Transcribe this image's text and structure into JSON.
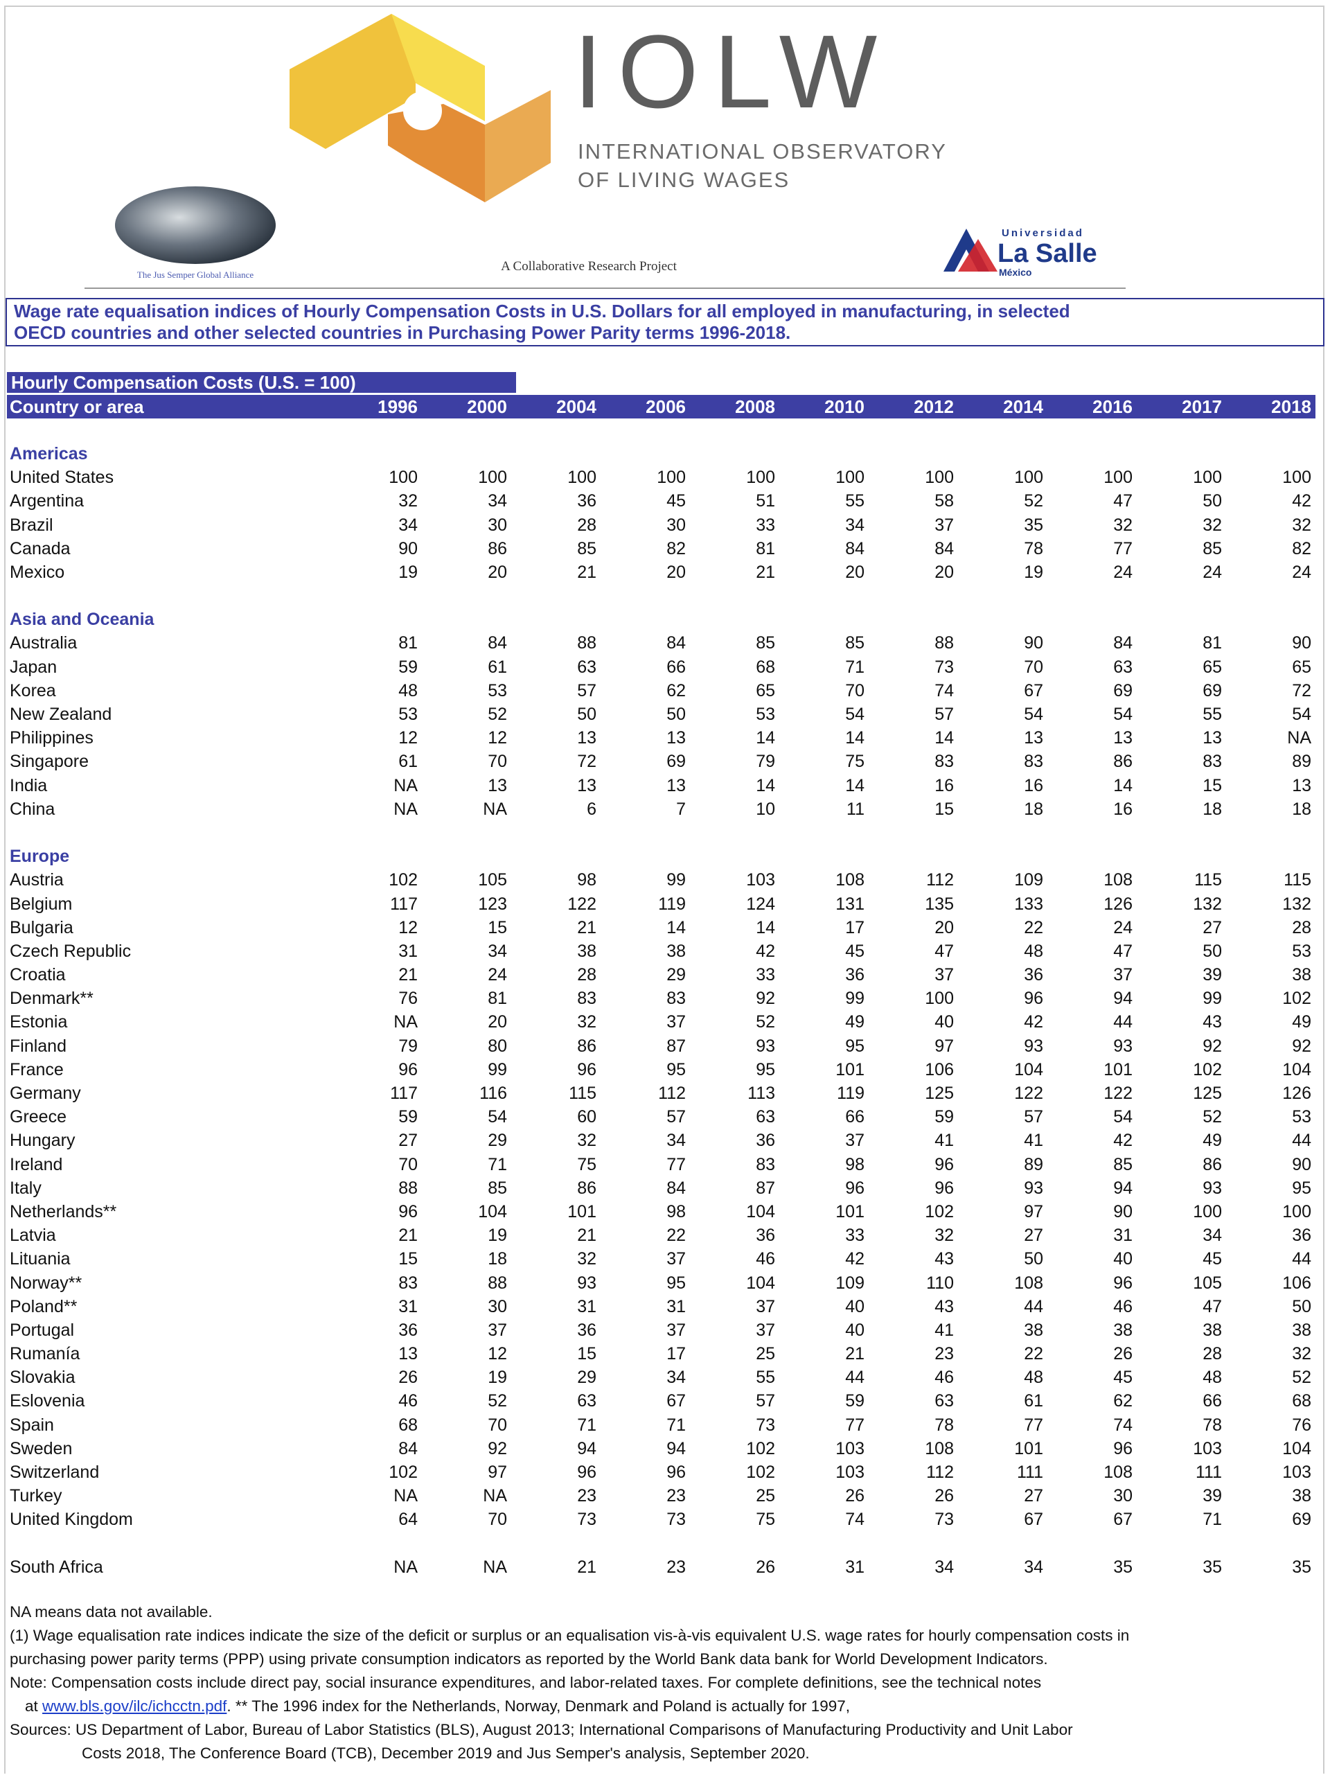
{
  "header": {
    "logo": "IOLW",
    "observatory_line1": "INTERNATIONAL OBSERVATORY",
    "observatory_line2": "OF LIVING WAGES",
    "alliance": "The Jus Semper Global Alliance",
    "project": "A Collaborative Research Project",
    "university_small": "Universidad",
    "university_name": "La Salle",
    "university_place": "México"
  },
  "title": {
    "lines": [
      "Wage rate equalisation indices of Hourly Compensation Costs in U.S. Dollars for all employed in manufacturing, in selected",
      "OECD countries and other selected countries in Purchasing Power Parity terms 1996-2018."
    ]
  },
  "table": {
    "caption": "Hourly Compensation Costs (U.S. = 100)",
    "header": [
      "Country or area",
      "1996",
      "2000",
      "2004",
      "2006",
      "2008",
      "2010",
      "2012",
      "2014",
      "2016",
      "2017",
      "2018"
    ],
    "groups": [
      {
        "name": "Americas",
        "rows": [
          [
            "United States",
            100,
            100,
            100,
            100,
            100,
            100,
            100,
            100,
            100,
            100,
            100
          ],
          [
            "Argentina",
            32,
            34,
            36,
            45,
            51,
            55,
            58,
            52,
            47,
            50,
            42
          ],
          [
            "Brazil",
            34,
            30,
            28,
            30,
            33,
            34,
            37,
            35,
            32,
            32,
            32
          ],
          [
            "Canada",
            90,
            86,
            85,
            82,
            81,
            84,
            84,
            78,
            77,
            85,
            82
          ],
          [
            "Mexico",
            19,
            20,
            21,
            20,
            21,
            20,
            20,
            19,
            24,
            24,
            24
          ]
        ]
      },
      {
        "name": "Asia and Oceania",
        "rows": [
          [
            "Australia",
            81,
            84,
            88,
            84,
            85,
            85,
            88,
            90,
            84,
            81,
            90
          ],
          [
            "Japan",
            59,
            61,
            63,
            66,
            68,
            71,
            73,
            70,
            63,
            65,
            65
          ],
          [
            "Korea",
            48,
            53,
            57,
            62,
            65,
            70,
            74,
            67,
            69,
            69,
            72
          ],
          [
            "New Zealand",
            53,
            52,
            50,
            50,
            53,
            54,
            57,
            54,
            54,
            55,
            54
          ],
          [
            "Philippines",
            12,
            12,
            13,
            13,
            14,
            14,
            14,
            13,
            13,
            13,
            "NA"
          ],
          [
            "Singapore",
            61,
            70,
            72,
            69,
            79,
            75,
            83,
            83,
            86,
            83,
            89
          ],
          [
            "India",
            "NA",
            13,
            13,
            13,
            14,
            14,
            16,
            16,
            14,
            15,
            13
          ],
          [
            "China",
            "NA",
            "NA",
            6,
            7,
            10,
            11,
            15,
            18,
            16,
            18,
            18
          ]
        ]
      },
      {
        "name": "Europe",
        "rows": [
          [
            "Austria",
            102,
            105,
            98,
            99,
            103,
            108,
            112,
            109,
            108,
            115,
            115
          ],
          [
            "Belgium",
            117,
            123,
            122,
            119,
            124,
            131,
            135,
            133,
            126,
            132,
            132
          ],
          [
            "Bulgaria",
            12,
            15,
            21,
            14,
            14,
            17,
            20,
            22,
            24,
            27,
            28
          ],
          [
            "Czech Republic",
            31,
            34,
            38,
            38,
            42,
            45,
            47,
            48,
            47,
            50,
            53
          ],
          [
            "Croatia",
            21,
            24,
            28,
            29,
            33,
            36,
            37,
            36,
            37,
            39,
            38
          ],
          [
            "Denmark**",
            76,
            81,
            83,
            83,
            92,
            99,
            100,
            96,
            94,
            99,
            102
          ],
          [
            "Estonia",
            "NA",
            20,
            32,
            37,
            52,
            49,
            40,
            42,
            44,
            43,
            49
          ],
          [
            "Finland",
            79,
            80,
            86,
            87,
            93,
            95,
            97,
            93,
            93,
            92,
            92
          ],
          [
            "France",
            96,
            99,
            96,
            95,
            95,
            101,
            106,
            104,
            101,
            102,
            104
          ],
          [
            "Germany",
            117,
            116,
            115,
            112,
            113,
            119,
            125,
            122,
            122,
            125,
            126
          ],
          [
            "Greece",
            59,
            54,
            60,
            57,
            63,
            66,
            59,
            57,
            54,
            52,
            53
          ],
          [
            "Hungary",
            27,
            29,
            32,
            34,
            36,
            37,
            41,
            41,
            42,
            49,
            44
          ],
          [
            "Ireland",
            70,
            71,
            75,
            77,
            83,
            98,
            96,
            89,
            85,
            86,
            90
          ],
          [
            "Italy",
            88,
            85,
            86,
            84,
            87,
            96,
            96,
            93,
            94,
            93,
            95
          ],
          [
            "Netherlands**",
            96,
            104,
            101,
            98,
            104,
            101,
            102,
            97,
            90,
            100,
            100
          ],
          [
            "Latvia",
            21,
            19,
            21,
            22,
            36,
            33,
            32,
            27,
            31,
            34,
            36
          ],
          [
            "Lituania",
            15,
            18,
            32,
            37,
            46,
            42,
            43,
            50,
            40,
            45,
            44
          ],
          [
            "Norway**",
            83,
            88,
            93,
            95,
            104,
            109,
            110,
            108,
            96,
            105,
            106
          ],
          [
            "Poland**",
            31,
            30,
            31,
            31,
            37,
            40,
            43,
            44,
            46,
            47,
            50
          ],
          [
            "Portugal",
            36,
            37,
            36,
            37,
            37,
            40,
            41,
            38,
            38,
            38,
            38
          ],
          [
            "Rumanía",
            13,
            12,
            15,
            17,
            25,
            21,
            23,
            22,
            26,
            28,
            32
          ],
          [
            "Slovakia",
            26,
            19,
            29,
            34,
            55,
            44,
            46,
            48,
            45,
            48,
            52
          ],
          [
            "Eslovenia",
            46,
            52,
            63,
            67,
            57,
            59,
            63,
            61,
            62,
            66,
            68
          ],
          [
            "Spain",
            68,
            70,
            71,
            71,
            73,
            77,
            78,
            77,
            74,
            78,
            76
          ],
          [
            "Sweden",
            84,
            92,
            94,
            94,
            102,
            103,
            108,
            101,
            96,
            103,
            104
          ],
          [
            "Switzerland",
            102,
            97,
            96,
            96,
            102,
            103,
            112,
            111,
            108,
            111,
            103
          ],
          [
            "Turkey",
            "NA",
            "NA",
            23,
            23,
            25,
            26,
            26,
            27,
            30,
            39,
            38
          ],
          [
            "United Kingdom",
            64,
            70,
            73,
            73,
            75,
            74,
            73,
            67,
            67,
            71,
            69
          ]
        ]
      },
      {
        "rows": [
          [
            "South Africa",
            "NA",
            "NA",
            21,
            23,
            26,
            31,
            34,
            34,
            35,
            35,
            35
          ]
        ]
      }
    ]
  },
  "notes": {
    "na": "NA means data not available.",
    "definition": [
      "(1) Wage equalisation rate indices indicate the size of the deficit or surplus or an equalisation vis-à-vis equivalent U.S. wage rates for hourly compensation costs in",
      "purchasing power parity terms (PPP) using private consumption indicators as reported by the World Bank data bank for World Development Indicators."
    ],
    "note_line1": "Note: Compensation costs include direct pay, social insurance expenditures, and labor-related taxes. For complete definitions, see the technical notes",
    "note_line2": {
      "prefix": "at",
      "link": "www.bls.gov/ilc/ichcctn.pdf",
      "suffix": ". ** The 1996 index for the Netherlands, Norway, Denmark and Poland is actually for 1997,"
    },
    "sources": [
      "Sources: US Department of Labor, Bureau of Labor Statistics (BLS), August 2013; International Comparisons of Manufacturing Productivity and Unit Labor",
      "Costs 2018, The Conference Board (TCB), December 2019 and Jus Semper's analysis, September 2020."
    ]
  }
}
